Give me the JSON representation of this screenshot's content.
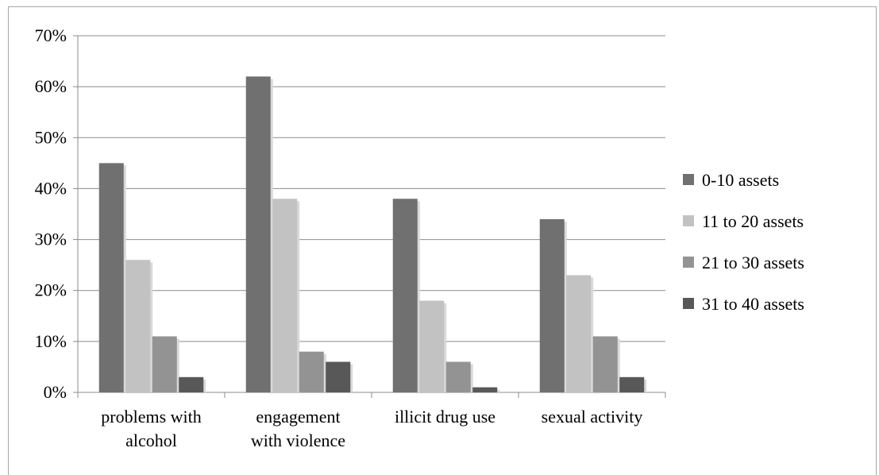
{
  "chart_data": {
    "type": "bar",
    "categories": [
      [
        "problems with",
        "alcohol"
      ],
      [
        "engagement",
        "with violence"
      ],
      [
        "illicit drug use"
      ],
      [
        "sexual activity"
      ]
    ],
    "series": [
      {
        "name": "0-10 assets",
        "color": "#707070",
        "values": [
          45,
          62,
          38,
          34
        ]
      },
      {
        "name": "11 to 20 assets",
        "color": "#c2c2c2",
        "values": [
          26,
          38,
          18,
          23
        ]
      },
      {
        "name": "21 to 30 assets",
        "color": "#939393",
        "values": [
          11,
          8,
          6,
          11
        ]
      },
      {
        "name": "31 to 40 assets",
        "color": "#585858",
        "values": [
          3,
          6,
          1,
          3
        ]
      }
    ],
    "y_ticks": [
      "0%",
      "10%",
      "20%",
      "30%",
      "40%",
      "50%",
      "60%",
      "70%"
    ],
    "ylim": [
      0,
      70
    ],
    "grid": true,
    "legend_position": "right"
  }
}
